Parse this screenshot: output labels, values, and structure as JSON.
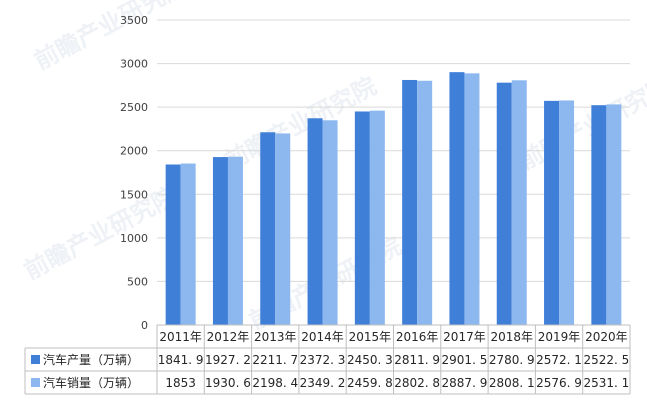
{
  "chart_data": {
    "type": "bar",
    "title": "",
    "xlabel": "",
    "ylabel": "",
    "categories": [
      "2011年",
      "2012年",
      "2013年",
      "2014年",
      "2015年",
      "2016年",
      "2017年",
      "2018年",
      "2019年",
      "2020年"
    ],
    "series": [
      {
        "name": "汽车产量（万辆）",
        "color": "#3f7fd8",
        "values": [
          1841.9,
          1927.2,
          2211.7,
          2372.3,
          2450.3,
          2811.9,
          2901.5,
          2780.9,
          2572.1,
          2522.5
        ],
        "labels": [
          "1841. 9",
          "1927. 2",
          "2211. 7",
          "2372. 3",
          "2450. 3",
          "2811. 9",
          "2901. 5",
          "2780. 9",
          "2572. 1",
          "2522. 5"
        ]
      },
      {
        "name": "汽车销量（万辆）",
        "color": "#8db8ef",
        "values": [
          1853,
          1930.6,
          2198.4,
          2349.2,
          2459.8,
          2802.8,
          2887.9,
          2808.1,
          2576.9,
          2531.1
        ],
        "labels": [
          "1853",
          "1930. 6",
          "2198. 4",
          "2349. 2",
          "2459. 8",
          "2802. 8",
          "2887. 9",
          "2808. 1",
          "2576. 9",
          "2531. 1"
        ]
      }
    ],
    "ylim": [
      0,
      3500
    ],
    "yticks": [
      0,
      500,
      1000,
      1500,
      2000,
      2500,
      3000,
      3500
    ],
    "grid": true,
    "legend": "data-table-left",
    "watermark": "前瞻产业研究院"
  }
}
